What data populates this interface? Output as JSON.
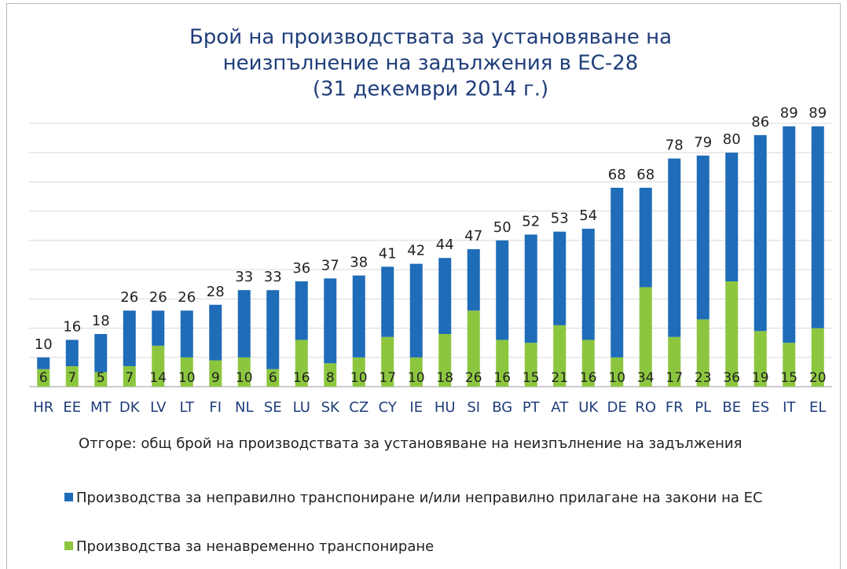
{
  "chart_data": {
    "type": "stacked_bar",
    "title_lines": [
      "Брой на производствата за установяване на",
      "неизпълнение на задължения в ЕС-28",
      "(31 декември 2014 г.)"
    ],
    "categories": [
      "HR",
      "EE",
      "MT",
      "DK",
      "LV",
      "LT",
      "FI",
      "NL",
      "SE",
      "LU",
      "SK",
      "CZ",
      "CY",
      "IE",
      "HU",
      "SI",
      "BG",
      "PT",
      "AT",
      "UK",
      "DE",
      "RO",
      "FR",
      "PL",
      "BE",
      "ES",
      "IT",
      "EL"
    ],
    "series": [
      {
        "name": "Производства за ненавременно транспониране",
        "color": "#8cc63f",
        "values": [
          6,
          7,
          5,
          7,
          14,
          10,
          9,
          10,
          6,
          16,
          8,
          10,
          17,
          10,
          18,
          26,
          16,
          15,
          21,
          16,
          10,
          34,
          17,
          23,
          36,
          19,
          15,
          20
        ]
      },
      {
        "name": "Производства за неправилно транспониране и/или неправилно прилагане на закони на ЕС",
        "color": "#1f6cb8",
        "values": [
          4,
          9,
          13,
          19,
          12,
          16,
          19,
          23,
          27,
          20,
          29,
          28,
          24,
          32,
          26,
          21,
          34,
          37,
          32,
          38,
          58,
          34,
          61,
          56,
          44,
          67,
          74,
          69
        ]
      }
    ],
    "totals": [
      10,
      16,
      18,
      26,
      26,
      26,
      28,
      33,
      33,
      36,
      37,
      38,
      41,
      42,
      44,
      47,
      50,
      52,
      53,
      54,
      68,
      68,
      78,
      79,
      80,
      86,
      89,
      89
    ],
    "note": "Отгоре: общ брой на производствата за установяване на неизпълнение на задължения",
    "ylim": [
      0,
      90
    ],
    "yticks": [
      0,
      10,
      20,
      30,
      40,
      50,
      60,
      70,
      80,
      90
    ],
    "grid": true
  }
}
